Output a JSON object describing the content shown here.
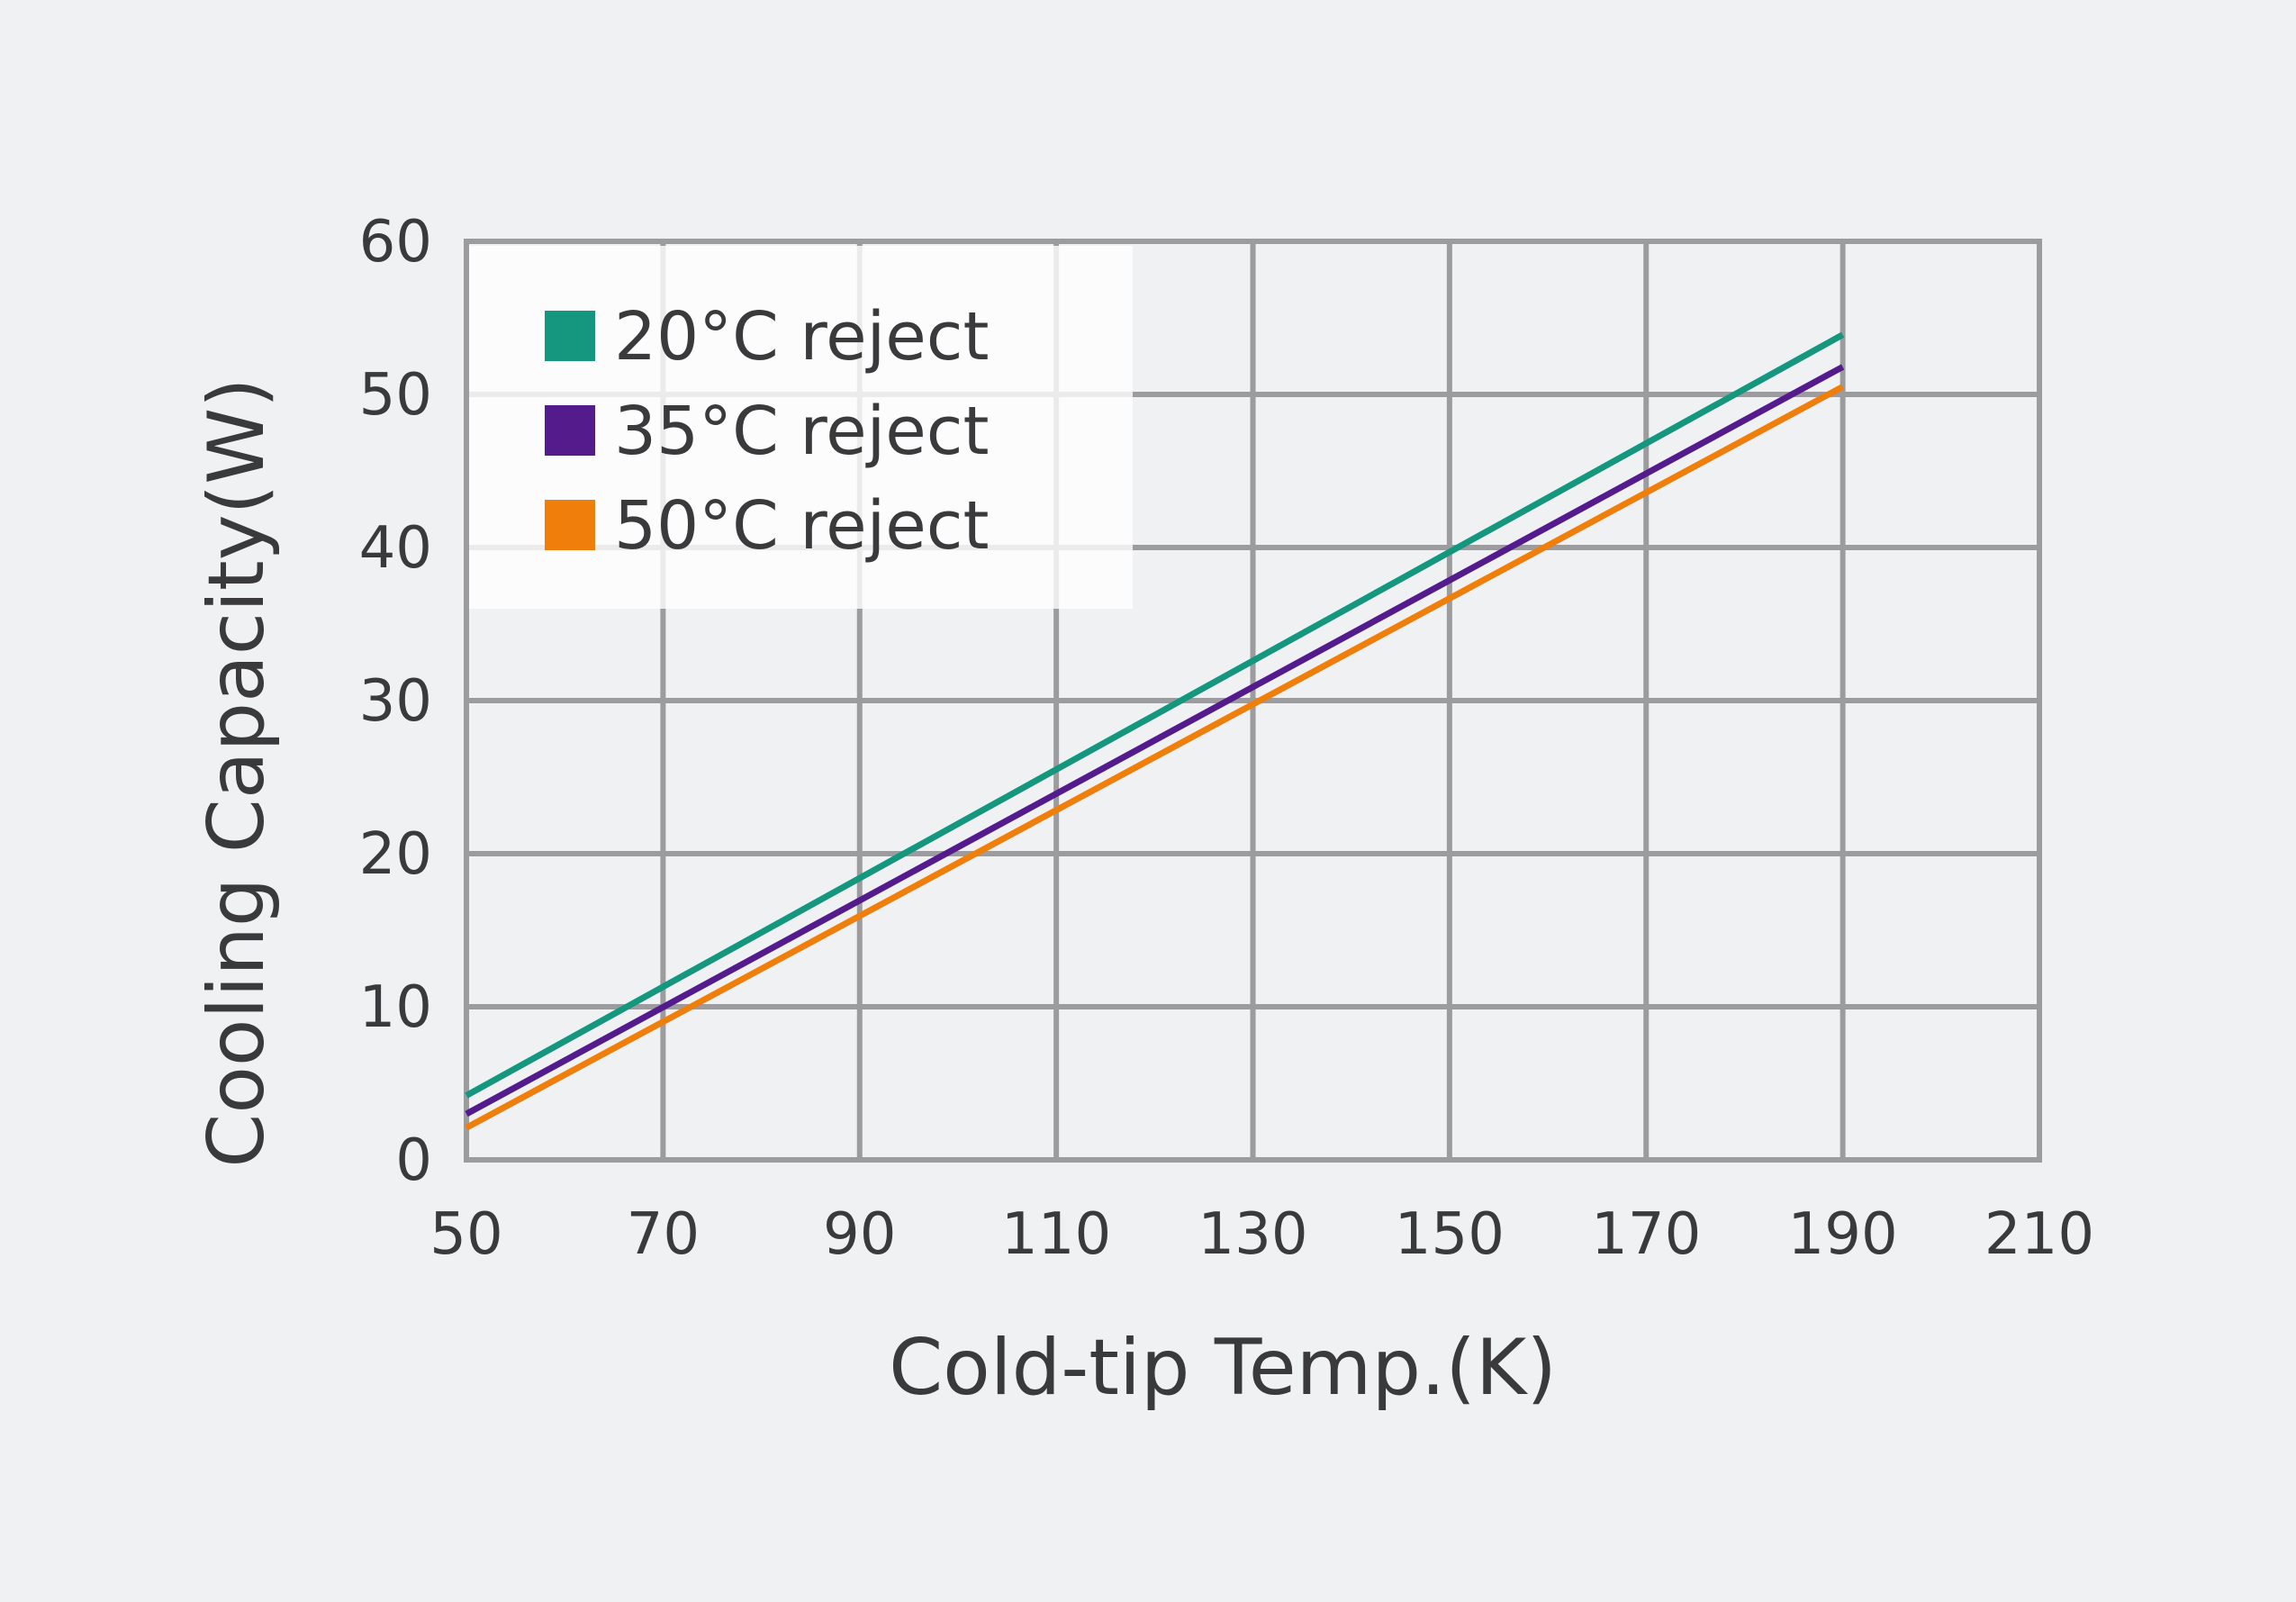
{
  "chart_data": {
    "type": "line",
    "xlabel": "Cold-tip Temp.(K)",
    "ylabel": "Cooling  Capacity(W)",
    "xlim": [
      50,
      210
    ],
    "ylim": [
      0,
      60
    ],
    "x_ticks": [
      "50",
      "70",
      "90",
      "110",
      "130",
      "150",
      "170",
      "190",
      "210"
    ],
    "y_ticks": [
      "0",
      "10",
      "20",
      "30",
      "40",
      "50",
      "60"
    ],
    "grid": true,
    "legend_position": "top-left",
    "series": [
      {
        "name": "20°C reject",
        "color": "#14967f",
        "x": [
          50,
          190
        ],
        "y": [
          4.2,
          53.9
        ]
      },
      {
        "name": "35°C reject",
        "color": "#531b8c",
        "x": [
          50,
          190
        ],
        "y": [
          3.0,
          51.8
        ]
      },
      {
        "name": "50°C reject",
        "color": "#ef7f0a",
        "x": [
          50,
          190
        ],
        "y": [
          2.1,
          50.5
        ]
      }
    ],
    "colors": {
      "background": "#f0f1f3",
      "grid": "#9c9c9e",
      "text": "#3a3a3c"
    }
  }
}
